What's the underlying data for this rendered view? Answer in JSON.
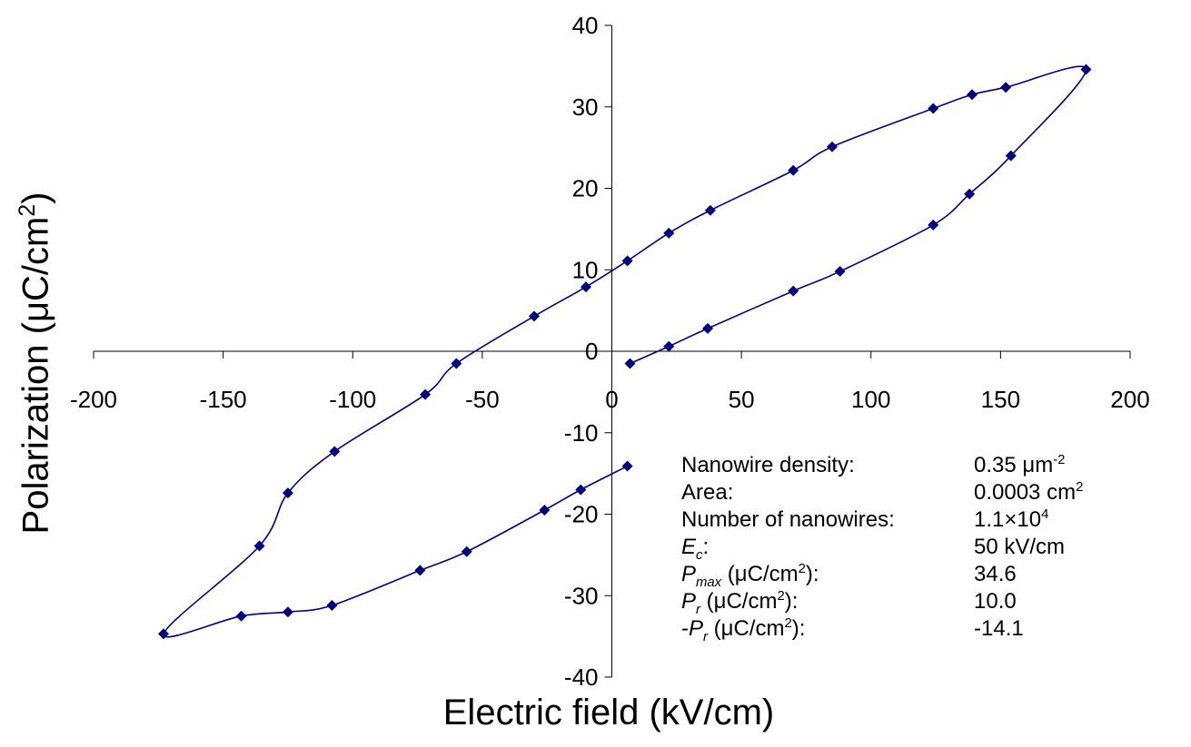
{
  "chart_data": {
    "type": "line",
    "xlabel": "Electric field (kV/cm)",
    "ylabel": "Polarization (μC/cm2)",
    "xlim": [
      -200,
      200
    ],
    "ylim": [
      -40,
      40
    ],
    "x_ticks": [
      "-200",
      "-150",
      "-100",
      "-50",
      "0",
      "50",
      "100",
      "150",
      "200"
    ],
    "y_ticks": [
      "40",
      "30",
      "20",
      "10",
      "0",
      "-10",
      "-20",
      "-30",
      "-40"
    ],
    "marker": "diamond",
    "series_color": "#000080",
    "series": [
      {
        "points": [
          [
            7,
            -1.5
          ],
          [
            22,
            0.6
          ],
          [
            37,
            2.8
          ],
          [
            70,
            7.4
          ],
          [
            88,
            9.8
          ],
          [
            124,
            15.5
          ],
          [
            138,
            19.3
          ],
          [
            154,
            24.0
          ],
          [
            183,
            34.6
          ],
          [
            152,
            32.4
          ],
          [
            139,
            31.5
          ],
          [
            124,
            29.8
          ],
          [
            85,
            25.1
          ],
          [
            70,
            22.2
          ],
          [
            38,
            17.3
          ],
          [
            22,
            14.5
          ],
          [
            6,
            11.1
          ],
          [
            -10,
            7.9
          ],
          [
            -30,
            4.3
          ],
          [
            -60,
            -1.5
          ],
          [
            -72,
            -5.3
          ],
          [
            -107,
            -12.3
          ],
          [
            -125,
            -17.4
          ],
          [
            -136,
            -23.9
          ],
          [
            -173,
            -34.7
          ],
          [
            -143,
            -32.5
          ],
          [
            -125,
            -32.0
          ],
          [
            -108,
            -31.2
          ],
          [
            -74,
            -26.9
          ],
          [
            -56,
            -24.6
          ],
          [
            -26,
            -19.5
          ],
          [
            -12,
            -17.0
          ],
          [
            6,
            -14.1
          ]
        ]
      }
    ]
  },
  "annotations": {
    "rows": [
      {
        "label": "Nanowire density:",
        "value": "0.35 μm",
        "value_sup": "-2"
      },
      {
        "label": "Area:",
        "value": "0.0003 cm",
        "value_sup": "2"
      },
      {
        "label": "Number of nanowires:",
        "value": "1.1×10",
        "value_sup": "4"
      },
      {
        "label_sym": "E",
        "label_sub": "c",
        "label_rest": ":",
        "value": "50 kV/cm"
      },
      {
        "label_sym": "P",
        "label_sub": "max",
        "label_rest": " (μC/cm",
        "label_sup": "2",
        "label_tail": "):",
        "value": "34.6"
      },
      {
        "label_sym": "P",
        "label_sub": "r",
        "label_rest": " (μC/cm",
        "label_sup": "2",
        "label_tail": "):",
        "value": "10.0"
      },
      {
        "label_pre": "-",
        "label_sym": "P",
        "label_sub": "r",
        "label_rest": " (μC/cm",
        "label_sup": "2",
        "label_tail": "):",
        "value": "-14.1"
      }
    ]
  }
}
